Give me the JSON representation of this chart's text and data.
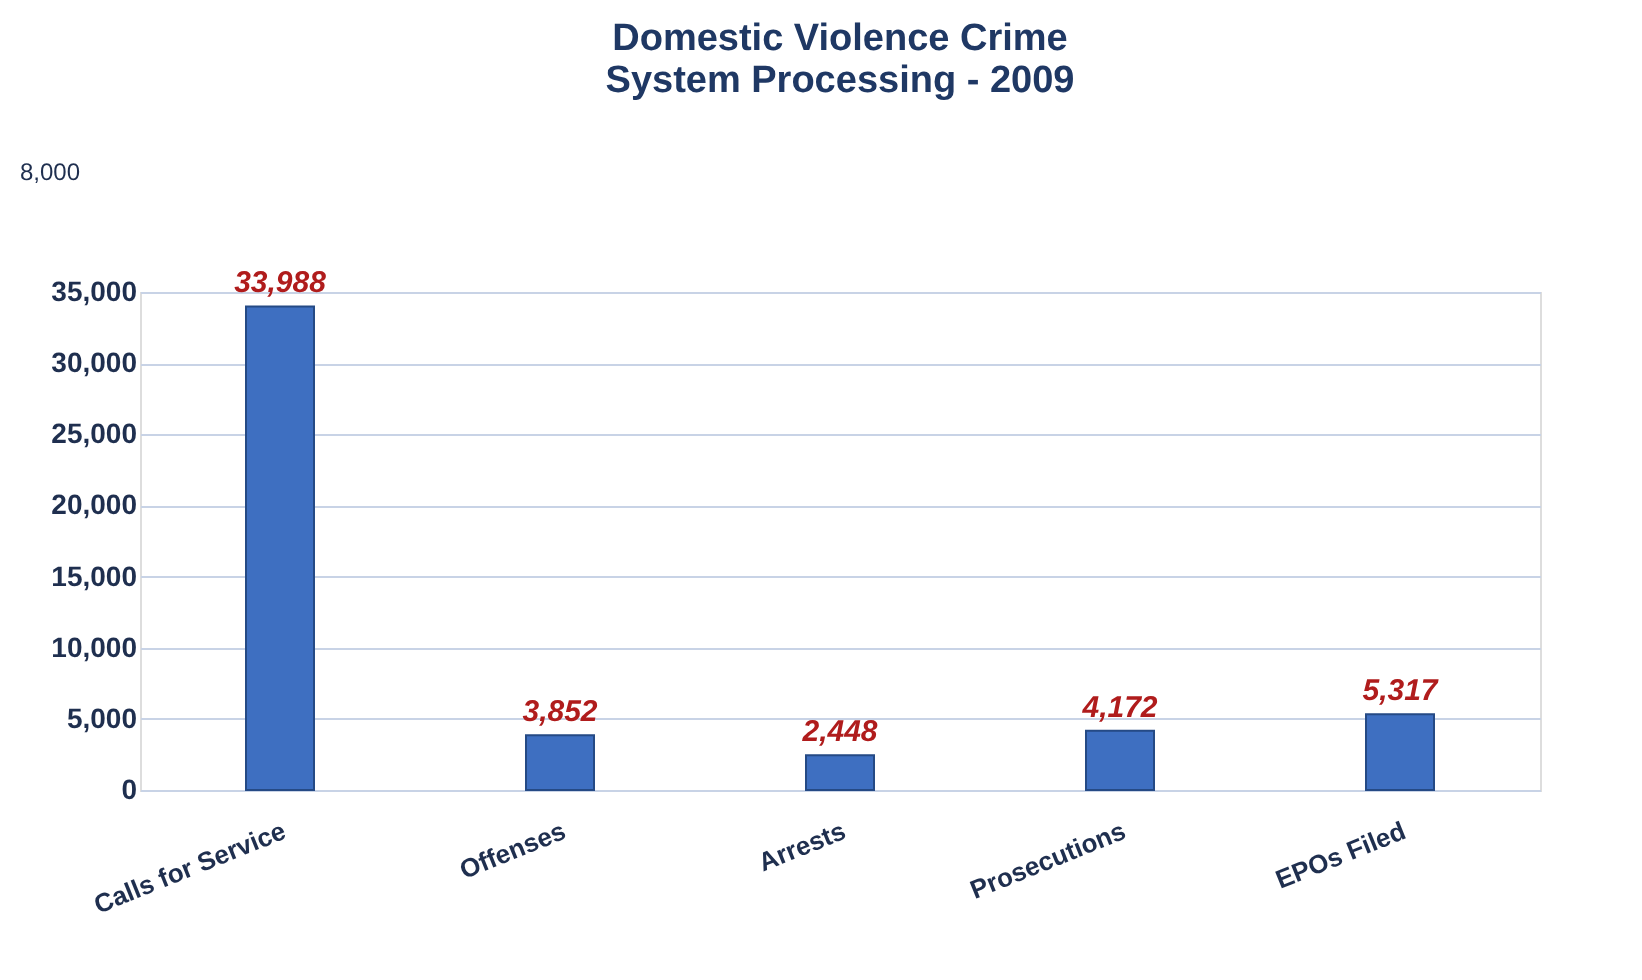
{
  "chart_data": {
    "type": "bar",
    "title": [
      "Domestic Violence Crime",
      "System Processing  - 2009"
    ],
    "categories": [
      "Calls for Service",
      "Offenses",
      "Arrests",
      "Prosecutions",
      "EPOs Filed"
    ],
    "values": [
      33988,
      3852,
      2448,
      4172,
      5317
    ],
    "value_labels": [
      "33,988",
      "3,852",
      "2,448",
      "4,172",
      "5,317"
    ],
    "color": "#3e6fc1",
    "ylim": [
      0,
      35000
    ],
    "yticks": [
      0,
      {
        "value": 5000,
        "label": "5,000"
      },
      {
        "value": 10000,
        "label": "10,000"
      },
      {
        "value": 15000,
        "label": "15,000"
      },
      {
        "value": 20000,
        "label": "20,000"
      },
      {
        "value": 25000,
        "label": "25,000"
      },
      {
        "value": 30000,
        "label": "30,000"
      },
      {
        "value": 35000,
        "label": "35,000"
      }
    ],
    "grid": "y",
    "annotations": [
      "8,000"
    ]
  }
}
